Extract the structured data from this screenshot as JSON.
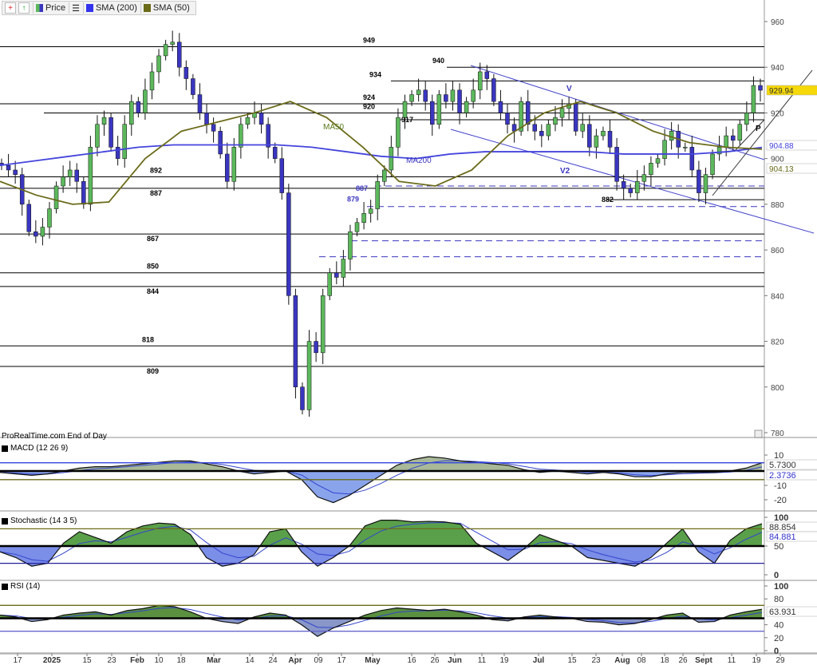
{
  "toolbar": {
    "price_label": "Price",
    "sma200_label": "SMA (200)",
    "sma50_label": "SMA (50)",
    "icons": [
      "zoom-in-icon",
      "up-arrow-icon",
      "price-color-icon",
      "list-icon"
    ]
  },
  "source_label": "ProRealTime.com   End of Day",
  "colors": {
    "up": "#5cb85c",
    "down": "#3a36c0",
    "sma200": "#4444dd",
    "sma50": "#6b6b1a",
    "grid": "#000000"
  },
  "chart_data": [
    {
      "type": "candlestick",
      "pane": "price",
      "ylim": [
        780,
        960
      ],
      "yticks": [
        960,
        940,
        920,
        900,
        880,
        860,
        840,
        820,
        800,
        780
      ],
      "x_ticks": [
        "17",
        "2025",
        "15",
        "23",
        "Feb",
        "10",
        "18",
        "Mar",
        "14",
        "24",
        "Apr",
        "09",
        "17",
        "May",
        "16",
        "26",
        "Jun",
        "11",
        "19",
        "Jul",
        "15",
        "23",
        "Aug",
        "08",
        "18",
        "26",
        "Sept",
        "11",
        "19",
        "29"
      ],
      "closes": [
        897,
        895,
        893,
        880,
        868,
        866,
        870,
        878,
        888,
        892,
        895,
        890,
        880,
        905,
        915,
        918,
        905,
        900,
        915,
        925,
        920,
        930,
        938,
        945,
        950,
        951,
        940,
        935,
        928,
        920,
        915,
        912,
        902,
        890,
        905,
        915,
        918,
        920,
        915,
        905,
        900,
        885,
        840,
        800,
        790,
        820,
        815,
        840,
        850,
        848,
        856,
        868,
        872,
        876,
        878,
        890,
        895,
        905,
        918,
        925,
        928,
        930,
        925,
        915,
        928,
        925,
        930,
        920,
        925,
        930,
        938,
        935,
        925,
        920,
        915,
        912,
        925,
        915,
        912,
        910,
        915,
        918,
        922,
        924,
        912,
        915,
        905,
        910,
        912,
        905,
        890,
        887,
        885,
        890,
        893,
        898,
        900,
        908,
        912,
        905,
        905,
        895,
        885,
        893,
        902,
        905,
        910,
        908,
        915,
        920,
        932,
        929.94
      ],
      "sma200": [
        897,
        899,
        901,
        903,
        905,
        906,
        906,
        906,
        906,
        905,
        903,
        901,
        900,
        902,
        903,
        903,
        903,
        903,
        902,
        902,
        902,
        903,
        904.88
      ],
      "sma50": [
        890,
        884,
        880,
        881,
        900,
        912,
        916,
        920,
        925,
        918,
        905,
        890,
        888,
        895,
        910,
        920,
        925,
        920,
        912,
        907,
        905,
        904.13
      ],
      "last_price": "929.94",
      "sma200_last": "904.88",
      "sma50_last": "904.13",
      "levels": [
        {
          "value": 949,
          "label": "949"
        },
        {
          "value": 940,
          "label": "940"
        },
        {
          "value": 934,
          "label": "934"
        },
        {
          "value": 924,
          "label": "924"
        },
        {
          "value": 920,
          "label": "920"
        },
        {
          "value": 917,
          "label": "917"
        },
        {
          "value": 892,
          "label": "892"
        },
        {
          "value": 887,
          "label": "887"
        },
        {
          "value": 882,
          "label": "882"
        },
        {
          "value": 867,
          "label": "867"
        },
        {
          "value": 850,
          "label": "850"
        },
        {
          "value": 844,
          "label": "844"
        },
        {
          "value": 818,
          "label": "818"
        },
        {
          "value": 809,
          "label": "809"
        }
      ],
      "blue_levels": [
        {
          "value": 887,
          "label": "887"
        },
        {
          "value": 879,
          "label": "879"
        }
      ],
      "dashed_levels": [
        888,
        879,
        864,
        857
      ],
      "annotations": {
        "v": "V",
        "v2": "V2",
        "p": "P",
        "ma50": "MA50",
        "ma200": "MA200"
      }
    },
    {
      "type": "area",
      "pane": "macd",
      "title": "MACD (12 26 9)",
      "ylim": [
        -28,
        14
      ],
      "yticks": [
        10,
        -10,
        -20
      ],
      "values": [
        -1,
        -2,
        -3,
        -2,
        0,
        2,
        3,
        3,
        4,
        5,
        6,
        7,
        7,
        5,
        3,
        0,
        -2,
        -1,
        0,
        -6,
        -18,
        -22,
        -17,
        -10,
        -3,
        4,
        8,
        10,
        9,
        7,
        6,
        5,
        4,
        1,
        -1,
        0,
        -1,
        -2,
        -1,
        -2,
        -4,
        -4,
        -2,
        -1,
        -1,
        -1,
        0,
        2,
        5.73
      ],
      "levels": [
        5.73,
        0,
        -6
      ],
      "readouts": [
        "5.7300",
        "2.3736"
      ]
    },
    {
      "type": "area",
      "pane": "stochastic",
      "title": "Stochastic (14 3 5)",
      "ylim": [
        0,
        100
      ],
      "yticks": [
        100,
        50,
        0
      ],
      "values": [
        40,
        30,
        15,
        20,
        55,
        75,
        65,
        55,
        75,
        85,
        90,
        88,
        70,
        30,
        15,
        20,
        35,
        75,
        80,
        40,
        15,
        30,
        50,
        85,
        95,
        95,
        92,
        93,
        92,
        88,
        55,
        40,
        25,
        45,
        70,
        60,
        50,
        30,
        25,
        20,
        15,
        30,
        55,
        80,
        40,
        20,
        60,
        80,
        88.85
      ],
      "levels": [
        80,
        50,
        20
      ],
      "readouts": [
        "88.854",
        "84.881"
      ]
    },
    {
      "type": "area",
      "pane": "rsi",
      "title": "RSI (14)",
      "ylim": [
        0,
        100
      ],
      "yticks": [
        100,
        80,
        40,
        20,
        0
      ],
      "values": [
        55,
        52,
        45,
        48,
        55,
        58,
        60,
        55,
        62,
        65,
        70,
        68,
        60,
        50,
        45,
        42,
        52,
        58,
        55,
        40,
        22,
        35,
        45,
        55,
        62,
        66,
        64,
        62,
        64,
        60,
        55,
        48,
        46,
        52,
        55,
        52,
        50,
        45,
        44,
        40,
        42,
        48,
        55,
        58,
        44,
        45,
        55,
        60,
        63.93
      ],
      "levels": [
        70,
        50,
        30
      ],
      "readouts": [
        "63.931"
      ]
    }
  ]
}
